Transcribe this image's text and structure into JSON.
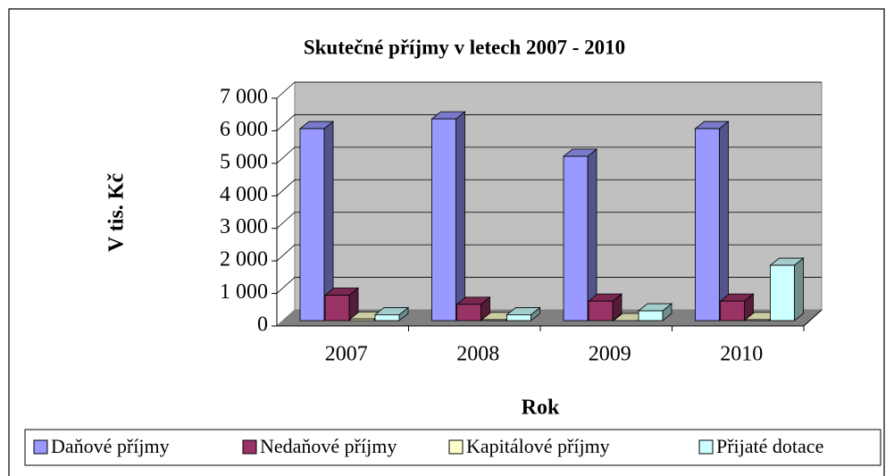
{
  "chart_data": {
    "type": "bar3d",
    "title": "Skutečné příjmy v letech 2007 - 2010",
    "y_label": "V tis. Kč",
    "x_label": "Rok",
    "categories": [
      "2007",
      "2008",
      "2009",
      "2010"
    ],
    "series": [
      {
        "name": "Daňové příjmy",
        "color": "#9999ff",
        "values": [
          5900,
          6200,
          5050,
          5900
        ]
      },
      {
        "name": "Nedaňové příjmy",
        "color": "#993366",
        "values": [
          780,
          500,
          600,
          600
        ]
      },
      {
        "name": "Kapitálové příjmy",
        "color": "#ffffcc",
        "values": [
          50,
          30,
          0,
          30
        ]
      },
      {
        "name": "Přijaté dotace",
        "color": "#ccffff",
        "values": [
          180,
          180,
          300,
          1700
        ]
      }
    ],
    "ylim": [
      0,
      7000
    ],
    "yticks": [
      0,
      {
        "value": 1000,
        "label": "1 000"
      },
      {
        "value": 2000,
        "label": "2 000"
      },
      {
        "value": 3000,
        "label": "3 000"
      },
      {
        "value": 4000,
        "label": "4 000"
      },
      {
        "value": 5000,
        "label": "5 000"
      },
      {
        "value": 6000,
        "label": "6 000"
      },
      {
        "value": 7000,
        "label": "7 000"
      }
    ],
    "grid": true
  }
}
